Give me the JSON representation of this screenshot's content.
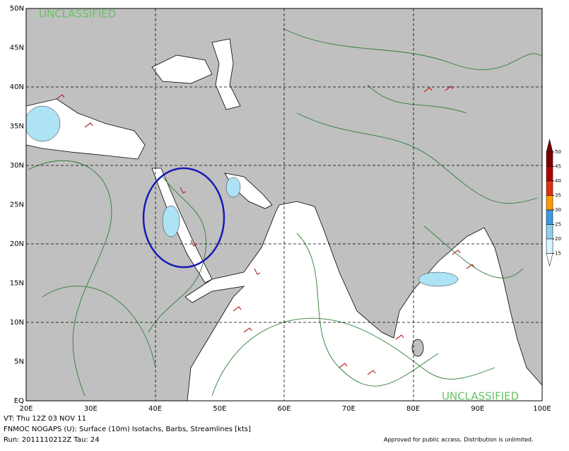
{
  "map": {
    "lat_labels": [
      "50N",
      "45N",
      "40N",
      "35N",
      "30N",
      "25N",
      "20N",
      "15N",
      "10N",
      "5N",
      "EQ"
    ],
    "lon_labels": [
      "20E",
      "30E",
      "40E",
      "50E",
      "60E",
      "70E",
      "80E",
      "90E",
      "100E"
    ],
    "classification_top": "UNCLASSIFIED",
    "classification_bottom": "UNCLASSIFIED",
    "colorbar": {
      "ticks": [
        50,
        45,
        40,
        35,
        30,
        25,
        20,
        15
      ],
      "colors": [
        "#7a0000",
        "#b00000",
        "#e03010",
        "#ff9a00",
        "#3d9be0",
        "#8fd0f0",
        "#d8f4ff"
      ]
    }
  },
  "footer": {
    "valid_time": "VT: Thu 12Z 03 NOV 11",
    "product": "FNMOC NOGAPS (U): Surface (10m) Isotachs, Barbs, Streamlines [kts]",
    "run": "Run: 2011110212Z Tau: 24",
    "approval": "Approved for public access. Distribution is unlimited."
  }
}
